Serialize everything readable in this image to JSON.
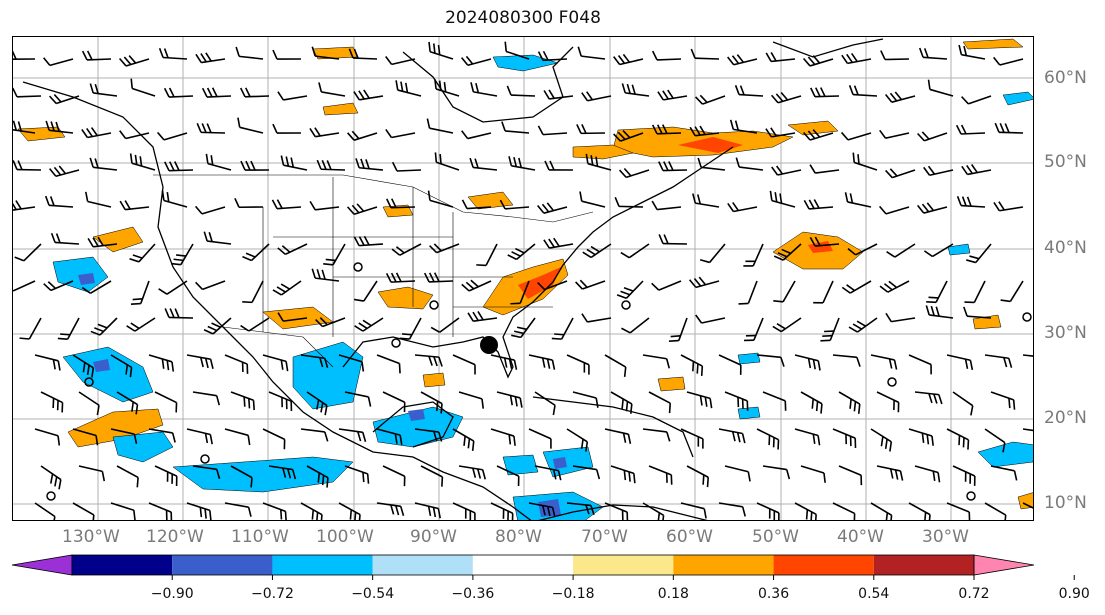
{
  "title": "2024080300 F048",
  "lat_labels": [
    "60°N",
    "50°N",
    "40°N",
    "30°N",
    "20°N",
    "10°N"
  ],
  "lon_labels": [
    "130°W",
    "120°W",
    "110°W",
    "100°W",
    "90°W",
    "80°W",
    "70°W",
    "60°W",
    "50°W",
    "40°W",
    "30°W"
  ],
  "colorbar": {
    "ticks": [
      "−0.90",
      "−0.72",
      "−0.54",
      "−0.36",
      "−0.18",
      "0.18",
      "0.36",
      "0.54",
      "0.72",
      "0.90"
    ],
    "colors": [
      "#9b30d6",
      "#00008b",
      "#3a5fcd",
      "#00bfff",
      "#b0e0f8",
      "#ffffff",
      "#fbe88a",
      "#ffa500",
      "#ff4500",
      "#b22222",
      "#ff85b0"
    ]
  },
  "colors": {
    "grid": "#b0b0b0",
    "coast": "#000000",
    "label": "#7a7a7a"
  },
  "map_marks": {
    "marker_filled": "storm-center-marker"
  }
}
